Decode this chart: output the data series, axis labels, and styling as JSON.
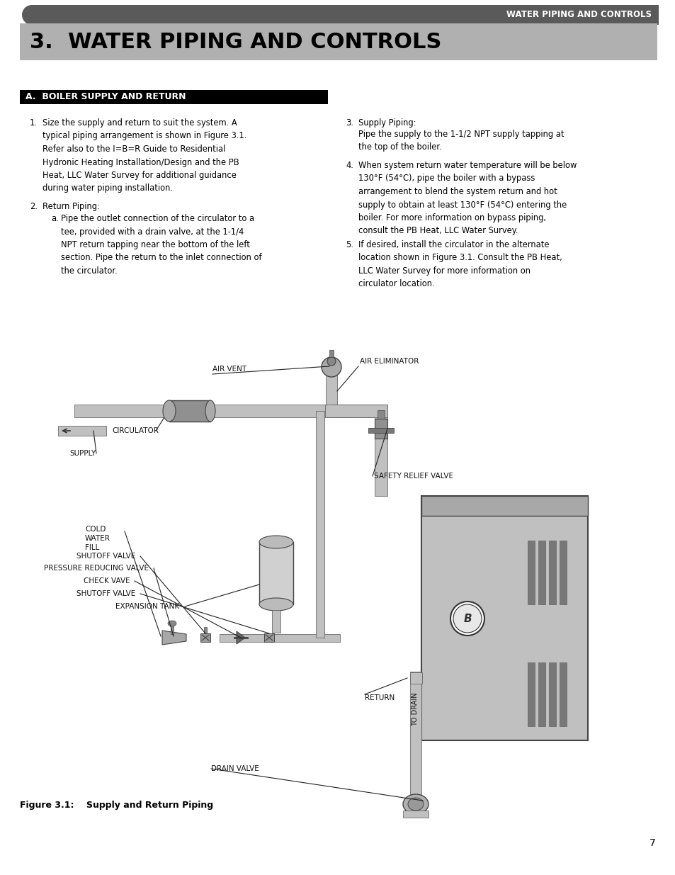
{
  "page_bg": "#ffffff",
  "header_bar_color": "#5a5a5a",
  "header_text": "WATER PIPING AND CONTROLS",
  "header_text_color": "#ffffff",
  "title_bg": "#b0b0b0",
  "title_text": "3.  WATER PIPING AND CONTROLS",
  "title_text_color": "#000000",
  "section_header_bg": "#000000",
  "section_header_text": "A.  BOILER SUPPLY AND RETURN",
  "section_header_text_color": "#ffffff",
  "body_text_color": "#000000",
  "item1_text": "Size the supply and return to suit the system. A\ntypical piping arrangement is shown in Figure 3.1.\nRefer also to the I=B=R Guide to Residential\nHydronic Heating Installation/Design and the PB\nHeat, LLC Water Survey for additional guidance\nduring water piping installation.",
  "item2_label": "Return Piping:",
  "item2a_text": "Pipe the outlet connection of the circulator to a\ntee, provided with a drain valve, at the 1-1/4\nNPT return tapping near the bottom of the left\nsection. Pipe the return to the inlet connection of\nthe circulator.",
  "item3_label": "Supply Piping:",
  "item3_text": "Pipe the supply to the 1-1/2 NPT supply tapping at\nthe top of the boiler.",
  "item4_text": "When system return water temperature will be below\n130°F (54°C), pipe the boiler with a bypass\narrangement to blend the system return and hot\nsupply to obtain at least 130°F (54°C) entering the\nboiler. For more information on bypass piping,\nconsult the PB Heat, LLC Water Survey.",
  "item5_text": "If desired, install the circulator in the alternate\nlocation shown in Figure 3.1. Consult the PB Heat,\nLLC Water Survey for more information on\ncirculator location.",
  "figure_caption": "Figure 3.1:    Supply and Return Piping",
  "page_number": "7",
  "pipe_color": "#c0c0c0",
  "pipe_edge": "#555555",
  "boiler_color": "#c0c0c0",
  "boiler_edge": "#444444",
  "label_color": "#111111",
  "label_fs": 7.5
}
